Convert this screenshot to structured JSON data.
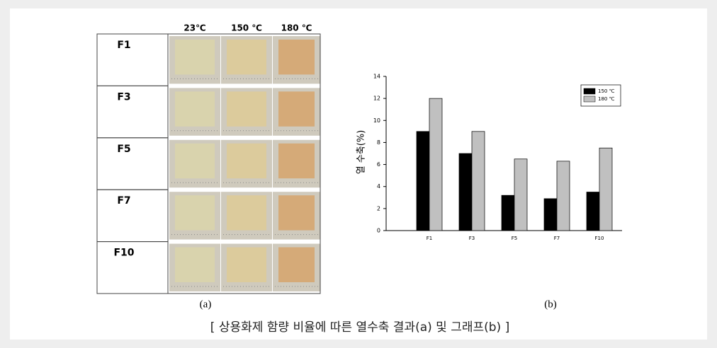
{
  "chart_data": {
    "type": "bar",
    "ylabel": "열 수축(%)",
    "categories": [
      "F1",
      "F3",
      "F5",
      "F7",
      "F10"
    ],
    "series": [
      {
        "name": "150 ℃",
        "color": "#000000",
        "values": [
          9,
          7,
          3.2,
          2.9,
          3.5
        ]
      },
      {
        "name": "180 ℃",
        "color": "#c0c0c0",
        "values": [
          12,
          9,
          6.5,
          6.3,
          7.5
        ]
      }
    ],
    "ylim": [
      0,
      14
    ],
    "yticks": [
      0,
      2,
      4,
      6,
      8,
      10,
      12,
      14
    ],
    "grid": false,
    "legend": "top-right"
  },
  "photo_table": {
    "columns": [
      "23℃",
      "150 ℃",
      "180 ℃"
    ],
    "rows": [
      "F1",
      "F3",
      "F5",
      "F7",
      "F10"
    ]
  },
  "panel_labels": [
    "(a)",
    "(b)"
  ],
  "caption": "[ 상용화제 함량 비율에 따른 열수축 결과(a) 및 그래프(b) ]"
}
